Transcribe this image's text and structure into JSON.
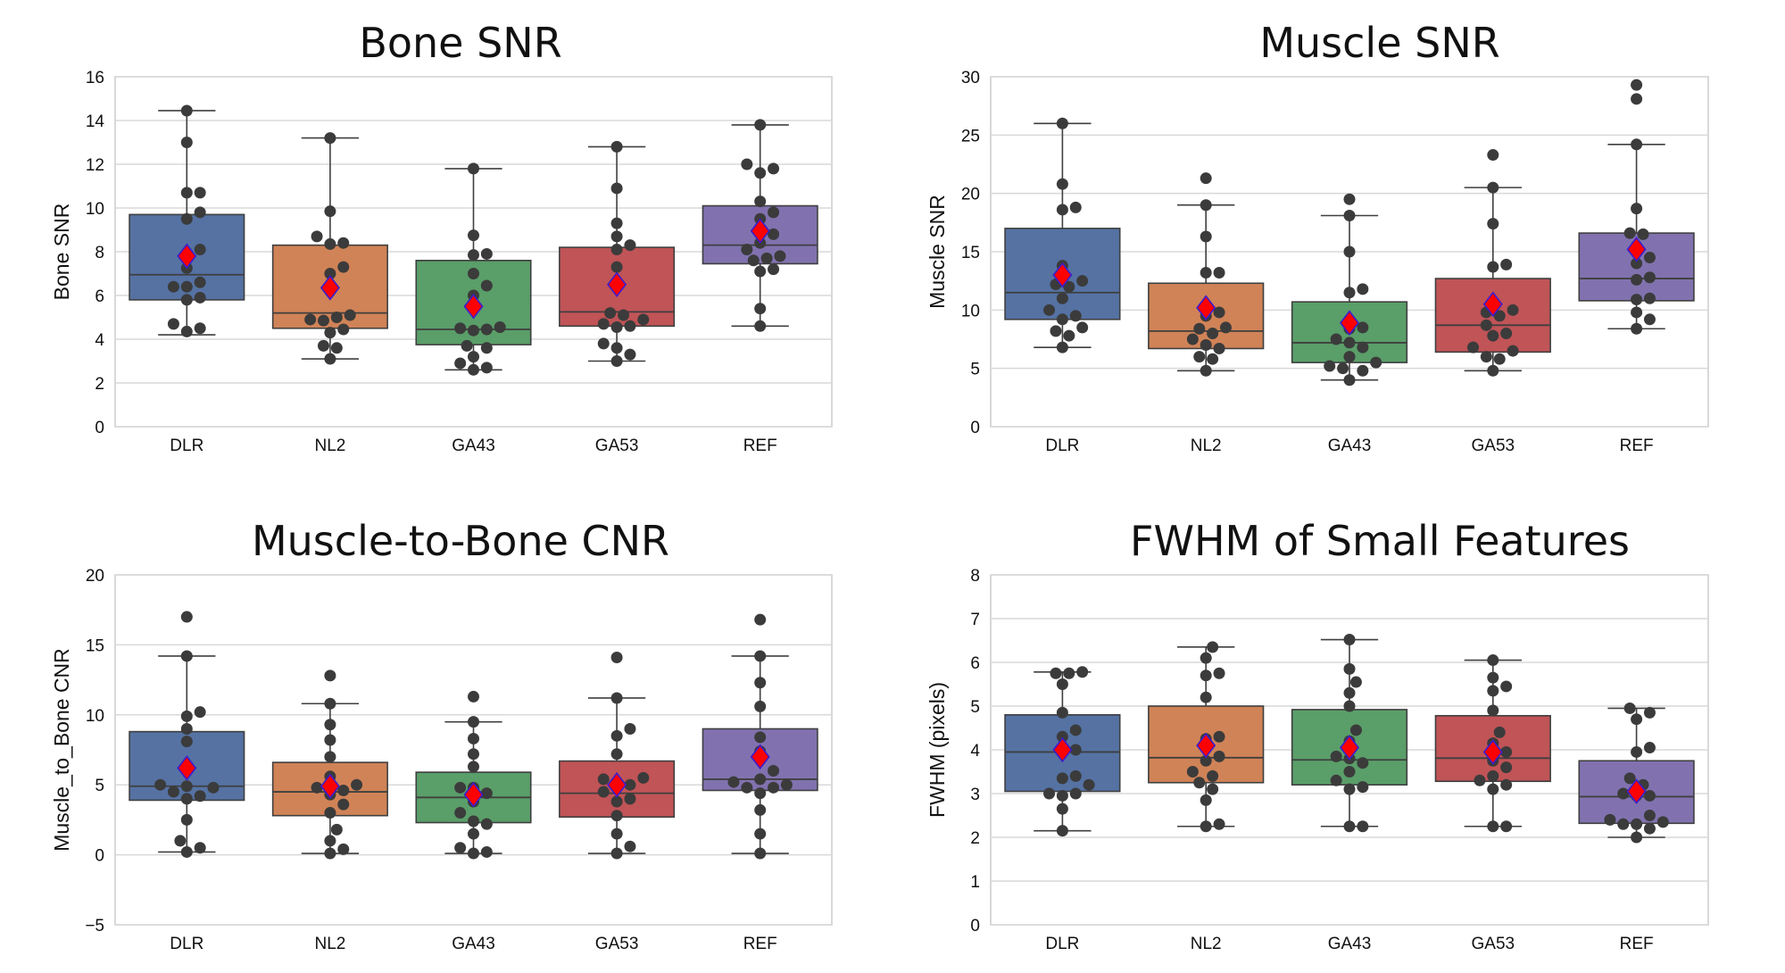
{
  "chart_data": [
    {
      "type": "box",
      "title": "Bone SNR",
      "ylabel": "Bone SNR",
      "xlabel": "",
      "ylim": [
        0,
        16
      ],
      "yticks": [
        0,
        2,
        4,
        6,
        8,
        10,
        12,
        14,
        16
      ],
      "ytick_labels": [
        "0",
        "2",
        "4",
        "6",
        "8",
        "10",
        "12",
        "14",
        "16"
      ],
      "categories": [
        "DLR",
        "NL2",
        "GA43",
        "GA53",
        "REF"
      ],
      "boxes": [
        {
          "q1": 5.8,
          "median": 6.95,
          "q3": 9.7,
          "whislo": 4.2,
          "whishi": 14.45,
          "mean": 7.8
        },
        {
          "q1": 4.5,
          "median": 5.2,
          "q3": 8.3,
          "whislo": 3.1,
          "whishi": 13.2,
          "mean": 6.35
        },
        {
          "q1": 3.75,
          "median": 4.45,
          "q3": 7.6,
          "whislo": 2.6,
          "whishi": 11.8,
          "mean": 5.5
        },
        {
          "q1": 4.6,
          "median": 5.25,
          "q3": 8.2,
          "whislo": 3.0,
          "whishi": 12.8,
          "mean": 6.5
        },
        {
          "q1": 7.45,
          "median": 8.3,
          "q3": 10.1,
          "whislo": 4.6,
          "whishi": 13.8,
          "mean": 8.95
        }
      ],
      "points": [
        [
          14.45,
          13.0,
          10.7,
          10.7,
          9.8,
          9.5,
          8.1,
          7.85,
          7.25,
          6.6,
          6.4,
          6.4,
          5.9,
          5.8,
          4.7,
          4.5,
          4.35
        ],
        [
          13.2,
          9.85,
          8.7,
          8.4,
          8.35,
          7.3,
          7.0,
          6.2,
          5.1,
          5.0,
          4.9,
          4.85,
          4.45,
          4.3,
          3.7,
          3.6,
          3.1
        ],
        [
          11.8,
          8.75,
          7.9,
          7.85,
          7.0,
          6.45,
          6.0,
          4.55,
          4.5,
          4.45,
          4.4,
          3.7,
          3.6,
          3.2,
          2.9,
          2.7,
          2.6
        ],
        [
          12.8,
          10.9,
          9.3,
          8.7,
          8.3,
          8.1,
          7.3,
          5.2,
          5.1,
          4.9,
          4.7,
          4.6,
          4.55,
          3.8,
          3.6,
          3.3,
          3.0
        ],
        [
          13.8,
          12.0,
          11.8,
          11.6,
          10.3,
          9.8,
          9.5,
          8.8,
          8.4,
          8.1,
          7.8,
          7.7,
          7.6,
          7.2,
          7.1,
          5.4,
          4.6
        ]
      ]
    },
    {
      "type": "box",
      "title": "Muscle SNR",
      "ylabel": "Muscle SNR",
      "xlabel": "",
      "ylim": [
        0,
        30
      ],
      "yticks": [
        0,
        5,
        10,
        15,
        20,
        25,
        30
      ],
      "ytick_labels": [
        "0",
        "5",
        "10",
        "15",
        "20",
        "25",
        "30"
      ],
      "categories": [
        "DLR",
        "NL2",
        "GA43",
        "GA53",
        "REF"
      ],
      "boxes": [
        {
          "q1": 9.2,
          "median": 11.5,
          "q3": 17.0,
          "whislo": 6.8,
          "whishi": 26.0,
          "mean": 13.0
        },
        {
          "q1": 6.7,
          "median": 8.2,
          "q3": 12.3,
          "whislo": 4.8,
          "whishi": 19.0,
          "mean": 10.2
        },
        {
          "q1": 5.5,
          "median": 7.2,
          "q3": 10.7,
          "whislo": 4.0,
          "whishi": 18.1,
          "mean": 8.9
        },
        {
          "q1": 6.4,
          "median": 8.7,
          "q3": 12.7,
          "whislo": 4.8,
          "whishi": 20.5,
          "mean": 10.5
        },
        {
          "q1": 10.8,
          "median": 12.7,
          "q3": 16.6,
          "whislo": 8.4,
          "whishi": 24.2,
          "mean": 15.2
        }
      ],
      "points": [
        [
          26.0,
          20.8,
          18.8,
          18.6,
          13.8,
          12.5,
          12.2,
          12.0,
          11.0,
          10.0,
          9.5,
          9.2,
          8.5,
          8.2,
          7.8,
          6.8
        ],
        [
          21.3,
          19.0,
          16.3,
          13.2,
          13.2,
          9.8,
          9.5,
          8.5,
          8.4,
          8.0,
          7.5,
          7.0,
          6.7,
          6.0,
          5.8,
          4.8
        ],
        [
          19.5,
          18.1,
          15.0,
          11.8,
          11.5,
          8.5,
          8.4,
          7.5,
          7.2,
          6.8,
          6.0,
          5.5,
          5.2,
          5.0,
          4.8,
          4.0
        ],
        [
          23.3,
          20.5,
          17.4,
          13.9,
          13.7,
          10.0,
          9.8,
          9.5,
          8.7,
          8.0,
          7.8,
          6.8,
          6.5,
          6.0,
          5.8,
          4.8
        ],
        [
          29.3,
          28.1,
          24.2,
          18.7,
          16.6,
          16.5,
          15.5,
          14.5,
          14.0,
          12.8,
          12.6,
          11.0,
          10.9,
          9.8,
          9.2,
          8.4
        ]
      ]
    },
    {
      "type": "box",
      "title": "Muscle-to-Bone CNR",
      "ylabel": "Muscle_to_Bone CNR",
      "xlabel": "",
      "ylim": [
        -5,
        20
      ],
      "yticks": [
        -5,
        0,
        5,
        10,
        15,
        20
      ],
      "ytick_labels": [
        "−5",
        "0",
        "5",
        "10",
        "15",
        "20"
      ],
      "categories": [
        "DLR",
        "NL2",
        "GA43",
        "GA53",
        "REF"
      ],
      "boxes": [
        {
          "q1": 3.9,
          "median": 4.9,
          "q3": 8.8,
          "whislo": 0.2,
          "whishi": 14.2,
          "mean": 6.2
        },
        {
          "q1": 2.8,
          "median": 4.5,
          "q3": 6.6,
          "whislo": 0.1,
          "whishi": 10.8,
          "mean": 4.9
        },
        {
          "q1": 2.3,
          "median": 4.1,
          "q3": 5.9,
          "whislo": 0.1,
          "whishi": 9.5,
          "mean": 4.3
        },
        {
          "q1": 2.7,
          "median": 4.4,
          "q3": 6.7,
          "whislo": 0.1,
          "whishi": 11.2,
          "mean": 5.0
        },
        {
          "q1": 4.6,
          "median": 5.4,
          "q3": 9.0,
          "whislo": 0.1,
          "whishi": 14.2,
          "mean": 7.0
        }
      ],
      "points": [
        [
          17.0,
          14.2,
          10.2,
          9.9,
          9.0,
          8.1,
          5.0,
          4.9,
          4.8,
          4.5,
          4.2,
          4.0,
          2.5,
          1.0,
          0.5,
          0.2
        ],
        [
          12.8,
          10.8,
          9.3,
          8.2,
          7.0,
          5.6,
          5.0,
          4.8,
          4.6,
          4.3,
          3.6,
          3.0,
          1.8,
          1.0,
          0.4,
          0.1
        ],
        [
          11.3,
          9.5,
          8.3,
          7.2,
          6.3,
          4.8,
          4.8,
          4.4,
          3.8,
          3.0,
          2.4,
          2.2,
          1.5,
          0.5,
          0.2,
          0.1
        ],
        [
          14.1,
          11.2,
          9.0,
          8.5,
          7.2,
          5.5,
          5.4,
          5.0,
          4.8,
          4.5,
          4.0,
          3.8,
          2.8,
          1.5,
          0.6,
          0.1
        ],
        [
          16.8,
          14.2,
          12.3,
          10.6,
          8.4,
          7.4,
          6.0,
          5.4,
          5.2,
          5.0,
          4.8,
          4.8,
          4.4,
          3.2,
          1.5,
          0.1
        ]
      ]
    },
    {
      "type": "box",
      "title": "FWHM of Small Features",
      "ylabel": "FWHM (pixels)",
      "xlabel": "",
      "ylim": [
        0,
        8
      ],
      "yticks": [
        0,
        1,
        2,
        3,
        4,
        5,
        6,
        7,
        8
      ],
      "ytick_labels": [
        "0",
        "1",
        "2",
        "3",
        "4",
        "5",
        "6",
        "7",
        "8"
      ],
      "categories": [
        "DLR",
        "NL2",
        "GA43",
        "GA53",
        "REF"
      ],
      "boxes": [
        {
          "q1": 3.05,
          "median": 3.95,
          "q3": 4.8,
          "whislo": 2.15,
          "whishi": 5.78,
          "mean": 4.0
        },
        {
          "q1": 3.25,
          "median": 3.82,
          "q3": 5.0,
          "whislo": 2.25,
          "whishi": 6.35,
          "mean": 4.1
        },
        {
          "q1": 3.2,
          "median": 3.77,
          "q3": 4.92,
          "whislo": 2.25,
          "whishi": 6.52,
          "mean": 4.05
        },
        {
          "q1": 3.28,
          "median": 3.81,
          "q3": 4.78,
          "whislo": 2.25,
          "whishi": 6.05,
          "mean": 3.95
        },
        {
          "q1": 2.32,
          "median": 2.93,
          "q3": 3.75,
          "whislo": 2.0,
          "whishi": 4.95,
          "mean": 3.05
        }
      ],
      "points": [
        [
          5.78,
          5.75,
          5.75,
          5.5,
          4.85,
          4.45,
          4.3,
          4.0,
          3.95,
          3.4,
          3.35,
          3.2,
          3.0,
          3.0,
          2.95,
          2.65,
          2.15
        ],
        [
          6.35,
          6.1,
          5.75,
          5.7,
          5.2,
          4.3,
          4.25,
          3.85,
          3.75,
          3.5,
          3.4,
          3.25,
          3.1,
          2.85,
          2.3,
          2.25
        ],
        [
          6.52,
          5.85,
          5.55,
          5.3,
          5.0,
          4.45,
          4.2,
          3.85,
          3.8,
          3.7,
          3.5,
          3.3,
          3.15,
          3.1,
          2.25,
          2.25
        ],
        [
          6.05,
          5.65,
          5.45,
          5.35,
          4.9,
          4.4,
          4.15,
          3.95,
          3.75,
          3.6,
          3.4,
          3.3,
          3.2,
          3.1,
          2.25,
          2.25
        ],
        [
          4.95,
          4.85,
          4.7,
          4.05,
          3.95,
          3.35,
          3.2,
          3.0,
          2.95,
          2.95,
          2.5,
          2.4,
          2.35,
          2.3,
          2.3,
          2.2,
          2.0
        ]
      ]
    }
  ],
  "colors": {
    "boxes": [
      "#5572a3",
      "#d08357",
      "#5a9e69",
      "#c05457",
      "#8172af"
    ],
    "points": "#3b3b3b",
    "box_edge": "#3f3f3f",
    "mean_fill": "#ff0000",
    "mean_edge": "#3a1dcf",
    "grid": "#d9d9d9",
    "frame": "#cccccc"
  }
}
